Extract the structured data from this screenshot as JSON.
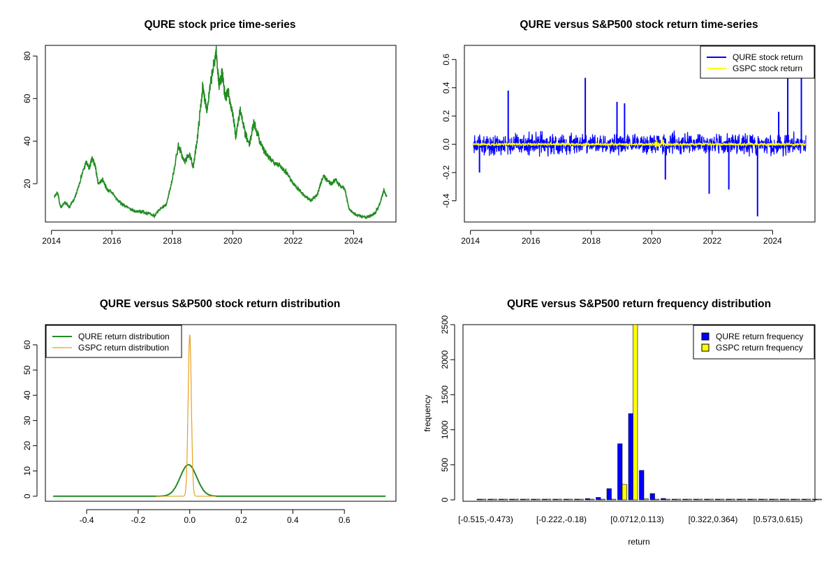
{
  "colors": {
    "price": "#228B22",
    "qure_return": "#0000FF",
    "gspc_return": "#FFFF00",
    "qure_density": "#228B22",
    "gspc_density": "#E6A020",
    "qure_hist": "#0000FF",
    "gspc_hist": "#FFFF00"
  },
  "chart_data": [
    {
      "type": "line",
      "title": "QURE stock price time-series",
      "xlabel": "",
      "ylabel": "",
      "xlim": [
        2013.8,
        2025.4
      ],
      "ylim": [
        2,
        85
      ],
      "x_ticks": [
        2014,
        2016,
        2018,
        2020,
        2022,
        2024
      ],
      "x_tick_labels": [
        "2014",
        "2016",
        "2018",
        "2020",
        "2022",
        "2024"
      ],
      "y_ticks": [
        20,
        40,
        60,
        80
      ],
      "y_tick_labels": [
        "20",
        "40",
        "60",
        "80"
      ],
      "series": [
        {
          "x": [
            2014.1,
            2014.2,
            2014.3,
            2014.45,
            2014.6,
            2014.8,
            2015.0,
            2015.15,
            2015.25,
            2015.35,
            2015.45,
            2015.55,
            2015.7,
            2015.85,
            2016.0,
            2016.2,
            2016.4,
            2016.6,
            2016.8,
            2017.0,
            2017.2,
            2017.4,
            2017.6,
            2017.8,
            2018.0,
            2018.2,
            2018.4,
            2018.55,
            2018.7,
            2018.85,
            2019.0,
            2019.15,
            2019.3,
            2019.45,
            2019.55,
            2019.65,
            2019.75,
            2019.85,
            2020.0,
            2020.1,
            2020.25,
            2020.4,
            2020.55,
            2020.7,
            2020.9,
            2021.05,
            2021.2,
            2021.4,
            2021.6,
            2021.8,
            2022.0,
            2022.2,
            2022.4,
            2022.6,
            2022.8,
            2023.0,
            2023.1,
            2023.25,
            2023.4,
            2023.55,
            2023.7,
            2023.85,
            2024.0,
            2024.2,
            2024.4,
            2024.55,
            2024.7,
            2024.85,
            2025.0,
            2025.1
          ],
          "y": [
            14,
            16,
            9,
            11,
            9,
            14,
            24,
            30,
            27,
            32,
            28,
            20,
            22,
            17,
            16,
            12,
            10,
            8,
            7,
            7,
            6,
            5,
            8,
            10,
            22,
            38,
            30,
            34,
            28,
            44,
            65,
            55,
            70,
            82,
            66,
            72,
            60,
            63,
            53,
            42,
            55,
            44,
            38,
            49,
            40,
            35,
            32,
            30,
            28,
            25,
            20,
            17,
            14,
            12,
            15,
            24,
            22,
            20,
            22,
            19,
            18,
            8,
            6,
            5,
            4,
            5,
            6,
            10,
            17,
            14
          ]
        }
      ]
    },
    {
      "type": "line",
      "title": "QURE versus S&P500 stock return time-series",
      "xlim": [
        2013.8,
        2025.4
      ],
      "ylim": [
        -0.55,
        0.7
      ],
      "x_ticks": [
        2014,
        2016,
        2018,
        2020,
        2022,
        2024
      ],
      "x_tick_labels": [
        "2014",
        "2016",
        "2018",
        "2020",
        "2022",
        "2024"
      ],
      "y_ticks": [
        -0.4,
        -0.2,
        0.0,
        0.2,
        0.4,
        0.6
      ],
      "y_tick_labels": [
        "-0.4",
        "-0.2",
        "0.0",
        "0.2",
        "0.4",
        "0.6"
      ],
      "legend": [
        "QURE stock return",
        "GSPC stock return"
      ],
      "legend_position": "top-right",
      "qure_spikes": [
        {
          "x": 2015.25,
          "y": 0.38
        },
        {
          "x": 2017.8,
          "y": 0.47
        },
        {
          "x": 2018.85,
          "y": 0.3
        },
        {
          "x": 2019.1,
          "y": 0.29
        },
        {
          "x": 2023.5,
          "y": -0.51
        },
        {
          "x": 2024.5,
          "y": 0.62
        },
        {
          "x": 2024.95,
          "y": 0.62
        },
        {
          "x": 2021.9,
          "y": -0.35
        },
        {
          "x": 2022.55,
          "y": -0.32
        },
        {
          "x": 2020.45,
          "y": -0.25
        },
        {
          "x": 2014.3,
          "y": -0.2
        },
        {
          "x": 2024.2,
          "y": 0.23
        }
      ]
    },
    {
      "type": "line",
      "title": "QURE versus S&P500 stock return distribution",
      "xlim": [
        -0.56,
        0.8
      ],
      "ylim": [
        -2,
        68
      ],
      "x_ticks": [
        -0.4,
        -0.2,
        0.0,
        0.2,
        0.4,
        0.6
      ],
      "x_tick_labels": [
        "-0.4",
        "-0.2",
        "0.0",
        "0.2",
        "0.4",
        "0.6"
      ],
      "y_ticks": [
        0,
        10,
        20,
        30,
        40,
        50,
        60
      ],
      "y_tick_labels": [
        "0",
        "10",
        "20",
        "30",
        "40",
        "50",
        "60"
      ],
      "legend": [
        "QURE return distribution",
        "GSPC return distribution"
      ],
      "legend_position": "top-left",
      "series": [
        {
          "name": "QURE return distribution",
          "peak_x": -0.005,
          "peak_y": 12.5,
          "sd": 0.032,
          "x_range": [
            -0.53,
            0.76
          ]
        },
        {
          "name": "GSPC return distribution",
          "peak_x": 0.0,
          "peak_y": 64,
          "sd": 0.0062,
          "x_range": [
            -0.13,
            0.1
          ]
        }
      ]
    },
    {
      "type": "bar",
      "title": "QURE versus S&P500 return frequency distribution",
      "xlabel": "return",
      "ylabel": "frequency",
      "ylim": [
        0,
        2500
      ],
      "y_ticks": [
        0,
        500,
        1000,
        1500,
        2000,
        2500
      ],
      "y_tick_labels": [
        "0",
        "500",
        "1000",
        "1500",
        "2000",
        "2500"
      ],
      "x_tick_labels": [
        "[-0.515,-0.473)",
        "[-0.222,-0.18)",
        "[0.0712,0.113)",
        "[0.322,0.364)",
        "[0.573,0.615)"
      ],
      "legend": [
        "QURE return frequency",
        "GSPC return frequency"
      ],
      "legend_position": "top-right",
      "series": [
        {
          "name": "QURE return frequency",
          "values": [
            1,
            0,
            0,
            0,
            0,
            0,
            0,
            1,
            3,
            10,
            18,
            35,
            160,
            800,
            1230,
            420,
            90,
            20,
            8,
            4,
            2,
            2,
            1,
            1,
            1,
            0,
            0,
            0,
            0,
            0,
            0,
            1
          ]
        },
        {
          "name": "GSPC return frequency",
          "values": [
            0,
            0,
            0,
            0,
            0,
            0,
            0,
            0,
            0,
            0,
            0,
            0,
            2,
            220,
            2500,
            15,
            2,
            0,
            0,
            0,
            0,
            0,
            0,
            0,
            0,
            0,
            0,
            0,
            0,
            0,
            0,
            0
          ]
        }
      ]
    }
  ]
}
